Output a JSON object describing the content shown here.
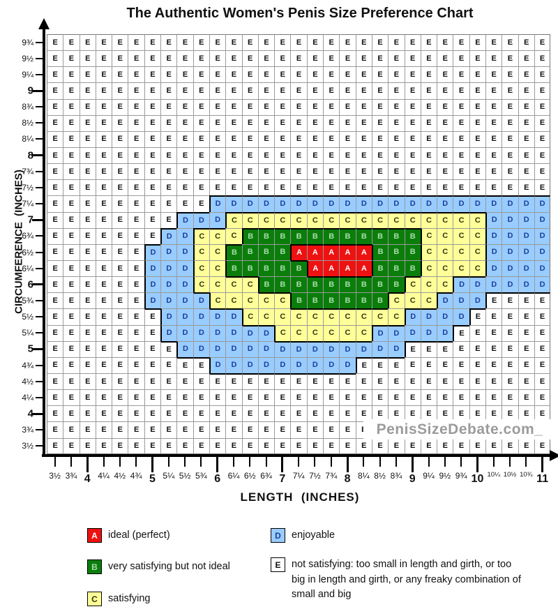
{
  "title": "The Authentic Women's Penis Size Preference Chart",
  "watermark": "PenisSizeDebate.com_",
  "y_axis": {
    "label": "CIRCUMFERENCE  (INCHES)"
  },
  "x_axis": {
    "label": "LENGTH  (INCHES)"
  },
  "chart_data": {
    "type": "heatmap",
    "title": "The Authentic Women's Penis Size Preference Chart",
    "xlabel": "LENGTH (INCHES)",
    "ylabel": "CIRCUMFERENCE (INCHES)",
    "x_ticks": [
      "3½",
      "3¾",
      "4",
      "4¼",
      "4½",
      "4¾",
      "5",
      "5¼",
      "5½",
      "5¾",
      "6",
      "6¼",
      "6½",
      "6¾",
      "7",
      "7¼",
      "7½",
      "7¾",
      "8",
      "8¼",
      "8½",
      "8¾",
      "9",
      "9¼",
      "9½",
      "9¾",
      "10",
      "10¼",
      "10½",
      "10¾",
      "11"
    ],
    "y_ticks": [
      "9¾",
      "9½",
      "9¼",
      "9",
      "8¾",
      "8½",
      "8¼",
      "8",
      "7¾",
      "7½",
      "7¼",
      "7",
      "6¾",
      "6½",
      "6¼",
      "6",
      "5¾",
      "5½",
      "5¼",
      "5",
      "4¾",
      "4½",
      "4¼",
      "4",
      "3¾",
      "3½"
    ],
    "x_values": [
      3.5,
      3.75,
      4,
      4.25,
      4.5,
      4.75,
      5,
      5.25,
      5.5,
      5.75,
      6,
      6.25,
      6.5,
      6.75,
      7,
      7.25,
      7.5,
      7.75,
      8,
      8.25,
      8.5,
      8.75,
      9,
      9.25,
      9.5,
      9.75,
      10,
      10.25,
      10.5,
      10.75,
      11
    ],
    "y_values": [
      9.75,
      9.5,
      9.25,
      9,
      8.75,
      8.5,
      8.25,
      8,
      7.75,
      7.5,
      7.25,
      7,
      6.75,
      6.5,
      6.25,
      6,
      5.75,
      5.5,
      5.25,
      5,
      4.75,
      4.5,
      4.25,
      4,
      3.75,
      3.5
    ],
    "rows": [
      "EEEEEEEEEEEEEEEEEEEEEEEEEEEEEEE",
      "EEEEEEEEEEEEEEEEEEEEEEEEEEEEEEE",
      "EEEEEEEEEEEEEEEEEEEEEEEEEEEEEEE",
      "EEEEEEEEEEEEEEEEEEEEEEEEEEEEEEE",
      "EEEEEEEEEEEEEEEEEEEEEEEEEEEEEEE",
      "EEEEEEEEEEEEEEEEEEEEEEEEEEEEEEE",
      "EEEEEEEEEEEEEEEEEEEEEEEEEEEEEEE",
      "EEEEEEEEEEEEEEEEEEEEEEEEEEEEEEE",
      "EEEEEEEEEEEEEEEEEEEEEEEEEEEEEEE",
      "EEEEEEEEEEEEEEEEEEEEEEEEEEEEEEE",
      "EEEEEEEEEEDDDDDDDDDDDDDDDDDDDDD",
      "EEEEEEEEDDDCCCCCCCCCCCCCCCCDDDD",
      "EEEEEEEDDCCCBBBBBBBBBBBCCCCDDDD",
      "EEEEEEDDDCCBBBBAAAAABBBCCCCDDDD",
      "EEEEEEDDDCCBBBBBAAAABBBCCCCDDDD",
      "EEEEEEDDDCCCCBBBBBBBBBCCCDDDDDD",
      "EEEEEEDDDDCCCCCBBBBBBCCCDDDEEEE",
      "EEEEEEEDDDDDCCCCCCCCCCDDDDEEEEE",
      "EEEEEEEDDDDDDDCCCCCCDDDDDEEEEEE",
      "EEEEEEEEDDDDDDDDDDDDDDEEEEEEEEE",
      "EEEEEEEEEEDDDDDDDDDEEEEEEEEEEEE",
      "EEEEEEEEEEEEEEEEEEEEEEEEEEEEEEE",
      "EEEEEEEEEEEEEEEEEEEEEEEEEEEEEEE",
      "EEEEEEEEEEEEEEEEEEEEEEEEEEEEEEE",
      "EEEEEEEEEEEEEEEEEEEEEEEEEEEEEEE",
      "EEEEEEEEEEEEEEEEEEEEEEEEEEEEEEE"
    ],
    "categories": {
      "A": "ideal (perfect)",
      "B": "very satisfying but not ideal",
      "C": "satisfying",
      "D": "enjoyable",
      "E": "not satisfying: too small in length and girth, or too big in length and girth, or any freaky combination of small and big"
    },
    "colors": {
      "A": {
        "bg": "#ee1111",
        "fg": "#ffffff"
      },
      "B": {
        "bg": "#0b7d0b",
        "fg": "#a8dca8"
      },
      "C": {
        "bg": "#ffff99",
        "fg": "#333311"
      },
      "D": {
        "bg": "#99ccff",
        "fg": "#1d3f99"
      },
      "E": {
        "bg": "#ffffff",
        "fg": "#111111"
      }
    },
    "legend_position": "bottom",
    "grid": true
  }
}
